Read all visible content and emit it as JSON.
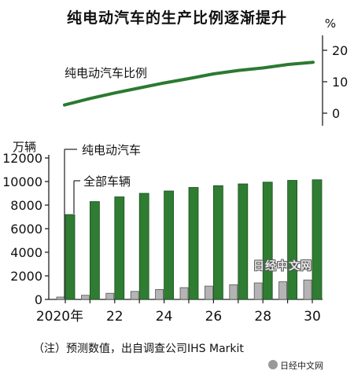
{
  "title": "纯电动汽车的生产比例逐渐提升",
  "note": "（注）预测数值，出自调查公司IHS Markit",
  "watermark_main": "日经中文网",
  "watermark_footer": "日经中文网",
  "chart_data": [
    {
      "type": "line",
      "series_label": "纯电动汽车比例",
      "unit": "%",
      "x": [
        2020,
        2021,
        2022,
        2023,
        2024,
        2025,
        2026,
        2027,
        2028,
        2029,
        2030
      ],
      "values": [
        2.6,
        4.6,
        6.4,
        8.0,
        9.6,
        11.0,
        12.5,
        13.6,
        14.4,
        15.5,
        16.2
      ],
      "ylim": [
        -3,
        22
      ],
      "yticks": [
        "0",
        "10",
        "20"
      ],
      "color": "#2a7a30"
    },
    {
      "type": "bar",
      "unit": "万辆",
      "categories": [
        "2020",
        "2021",
        "2022",
        "2023",
        "2024",
        "2025",
        "2026",
        "2027",
        "2028",
        "2029",
        "2030"
      ],
      "xtick_labels": [
        "2020年",
        "",
        "22",
        "",
        "24",
        "",
        "26",
        "",
        "28",
        "",
        "30"
      ],
      "ylim": [
        0,
        12000
      ],
      "yticks": [
        "0",
        "2000",
        "4000",
        "6000",
        "8000",
        "10000",
        "12000"
      ],
      "series": [
        {
          "name": "纯电动汽车",
          "color": "#b4b4b4",
          "values": [
            200,
            350,
            520,
            680,
            840,
            1000,
            1130,
            1250,
            1400,
            1500,
            1650
          ]
        },
        {
          "name": "全部车辆",
          "color": "#2e7d32",
          "values": [
            7200,
            8300,
            8700,
            9000,
            9200,
            9500,
            9650,
            9800,
            9950,
            10100,
            10150
          ]
        }
      ]
    }
  ]
}
